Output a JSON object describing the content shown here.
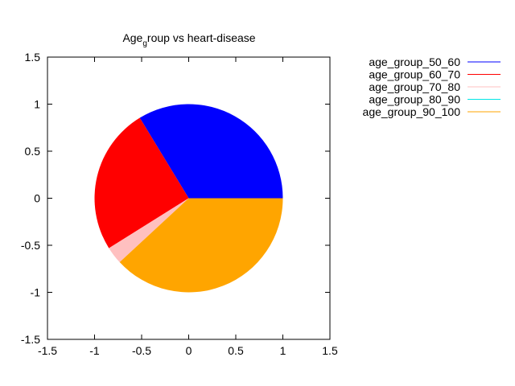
{
  "chart_data": {
    "type": "pie",
    "title": "Age",
    "title_sub": "g",
    "title_rest": "roup vs heart-disease",
    "xlim": [
      -1.5,
      1.5
    ],
    "ylim": [
      -1.5,
      1.5
    ],
    "xticks": [
      "-1.5",
      "-1",
      "-0.5",
      "0",
      "0.5",
      "1",
      "1.5"
    ],
    "yticks": [
      "1.5",
      "1",
      "0.5",
      "0",
      "-0.5",
      "-1",
      "-1.5"
    ],
    "legend_position": "right",
    "series": [
      {
        "name": "age_group_50_60",
        "color": "#0000ff",
        "value": 0.337
      },
      {
        "name": "age_group_60_70",
        "color": "#ff0000",
        "value": 0.252
      },
      {
        "name": "age_group_70_80",
        "color": "#ffc0c0",
        "value": 0.03
      },
      {
        "name": "age_group_80_90",
        "color": "#00e5e5",
        "value": 0.0
      },
      {
        "name": "age_group_90_100",
        "color": "#ffa500",
        "value": 0.381
      }
    ]
  }
}
